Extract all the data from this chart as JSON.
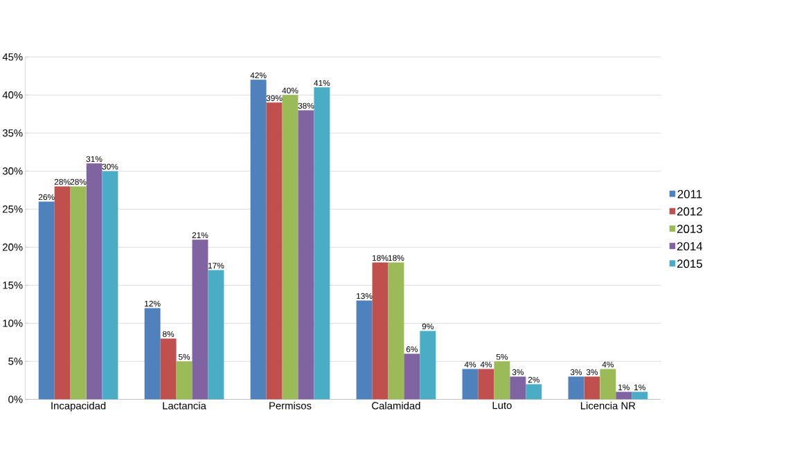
{
  "chart_data": {
    "type": "bar",
    "categories": [
      "Incapacidad",
      "Lactancia",
      "Permisos",
      "Calamidad",
      "Luto",
      "Licencia NR"
    ],
    "series": [
      {
        "name": "2011",
        "color": "#4f81bd",
        "values": [
          26,
          12,
          42,
          13,
          4,
          3
        ],
        "value_labels": [
          "26%",
          "12%",
          "42%",
          "13%",
          "4%",
          "3%"
        ]
      },
      {
        "name": "2012",
        "color": "#c0504d",
        "values": [
          28,
          8,
          39,
          18,
          4,
          3
        ],
        "value_labels": [
          "28%",
          "8%",
          "39%",
          "18%",
          "4%",
          "3%"
        ]
      },
      {
        "name": "2013",
        "color": "#9bbb59",
        "values": [
          28,
          5,
          40,
          18,
          5,
          4
        ],
        "value_labels": [
          "28%",
          "5%",
          "40%",
          "18%",
          "5%",
          "4%"
        ]
      },
      {
        "name": "2014",
        "color": "#8064a2",
        "values": [
          31,
          21,
          38,
          6,
          3,
          1
        ],
        "value_labels": [
          "31%",
          "21%",
          "38%",
          "6%",
          "3%",
          "1%"
        ]
      },
      {
        "name": "2015",
        "color": "#4bacc6",
        "values": [
          30,
          17,
          41,
          9,
          2,
          1
        ],
        "value_labels": [
          "30%",
          "17%",
          "41%",
          "9%",
          "2%",
          "1%"
        ]
      }
    ],
    "ylim": [
      0,
      45
    ],
    "yticks": [
      {
        "value": 0,
        "label": "0%"
      },
      {
        "value": 5,
        "label": "5%"
      },
      {
        "value": 10,
        "label": "10%"
      },
      {
        "value": 15,
        "label": "15%"
      },
      {
        "value": 20,
        "label": "20%"
      },
      {
        "value": 25,
        "label": "25%"
      },
      {
        "value": 30,
        "label": "30%"
      },
      {
        "value": 35,
        "label": "35%"
      },
      {
        "value": 40,
        "label": "40%"
      },
      {
        "value": 45,
        "label": "45%"
      }
    ],
    "grid": "y",
    "legend": "right"
  }
}
